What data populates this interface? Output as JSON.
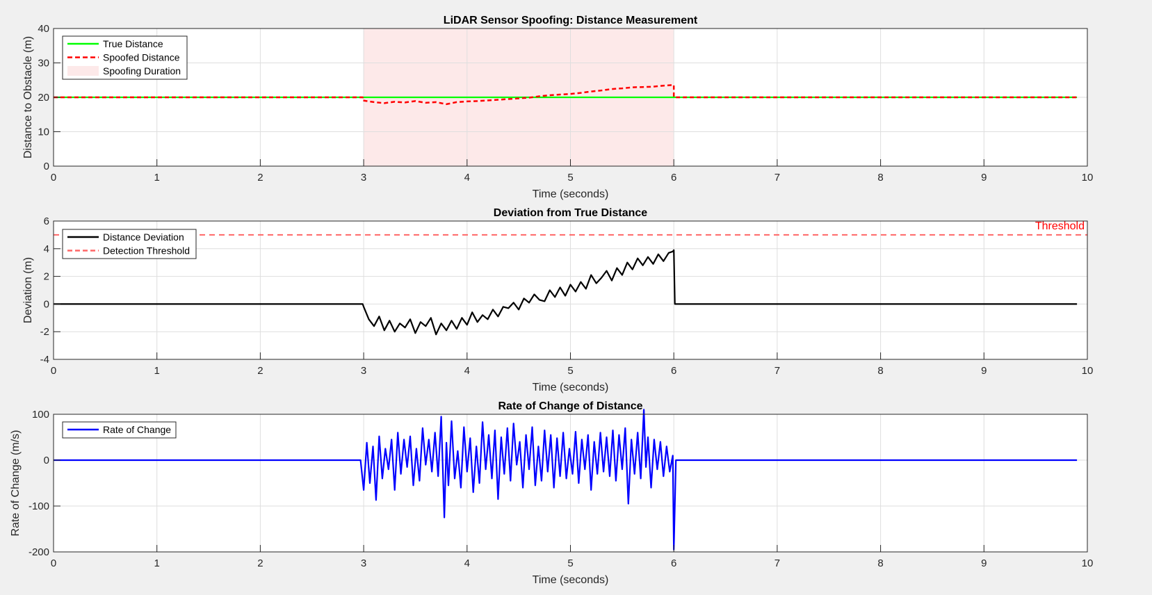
{
  "figure": {
    "background": "#f0f0f0"
  },
  "chart_data": [
    {
      "type": "line",
      "title": "LiDAR Sensor Spoofing: Distance Measurement",
      "xlabel": "Time (seconds)",
      "ylabel": "Distance to Obstacle (m)",
      "xlim": [
        0,
        10
      ],
      "ylim": [
        0,
        40
      ],
      "xticks": [
        0,
        1,
        2,
        3,
        4,
        5,
        6,
        7,
        8,
        9,
        10
      ],
      "yticks": [
        0,
        10,
        20,
        30,
        40
      ],
      "grid": true,
      "legend_position": "top-left",
      "shaded_region": {
        "label": "Spoofing Duration",
        "x_start": 3,
        "x_end": 6,
        "color": "#fde9e9"
      },
      "series": [
        {
          "name": "True Distance",
          "color": "#00ff00",
          "dash": "solid",
          "x": [
            0,
            9.9
          ],
          "y": [
            20,
            20
          ]
        },
        {
          "name": "Spoofed Distance",
          "color": "#ff0000",
          "dash": "dashed",
          "x": [
            0,
            2.99,
            2.99,
            3.1,
            3.2,
            3.3,
            3.4,
            3.5,
            3.6,
            3.7,
            3.8,
            3.9,
            4.0,
            4.1,
            4.2,
            4.3,
            4.4,
            4.5,
            4.6,
            4.7,
            4.8,
            4.9,
            5.0,
            5.1,
            5.2,
            5.3,
            5.4,
            5.5,
            5.6,
            5.7,
            5.8,
            5.9,
            6.0,
            6.0,
            9.9
          ],
          "y": [
            20,
            20,
            19.1,
            18.6,
            18.3,
            18.7,
            18.5,
            18.9,
            18.4,
            18.6,
            18.0,
            18.6,
            18.8,
            18.9,
            19.1,
            19.3,
            19.5,
            19.7,
            19.9,
            20.3,
            20.6,
            20.8,
            21.0,
            21.3,
            21.7,
            22.0,
            22.4,
            22.6,
            22.9,
            23.0,
            23.1,
            23.4,
            23.6,
            20,
            20
          ]
        }
      ]
    },
    {
      "type": "line",
      "title": "Deviation from True Distance",
      "xlabel": "Time (seconds)",
      "ylabel": "Deviation (m)",
      "xlim": [
        0,
        10
      ],
      "ylim": [
        -4,
        6
      ],
      "xticks": [
        0,
        1,
        2,
        3,
        4,
        5,
        6,
        7,
        8,
        9,
        10
      ],
      "yticks": [
        -4,
        -2,
        0,
        2,
        4,
        6
      ],
      "grid": true,
      "legend_position": "top-left",
      "threshold": {
        "name": "Detection Threshold",
        "value": 5,
        "color": "#ff6666",
        "annotation": "Threshold"
      },
      "series": [
        {
          "name": "Distance Deviation",
          "color": "#000000",
          "dash": "solid",
          "x": [
            0,
            2.99,
            3.0,
            3.05,
            3.1,
            3.15,
            3.2,
            3.25,
            3.3,
            3.35,
            3.4,
            3.45,
            3.5,
            3.55,
            3.6,
            3.65,
            3.7,
            3.75,
            3.8,
            3.85,
            3.9,
            3.95,
            4.0,
            4.05,
            4.1,
            4.15,
            4.2,
            4.25,
            4.3,
            4.35,
            4.4,
            4.45,
            4.5,
            4.55,
            4.6,
            4.65,
            4.7,
            4.75,
            4.8,
            4.85,
            4.9,
            4.95,
            5.0,
            5.05,
            5.1,
            5.15,
            5.2,
            5.25,
            5.3,
            5.35,
            5.4,
            5.45,
            5.5,
            5.55,
            5.6,
            5.65,
            5.7,
            5.75,
            5.8,
            5.85,
            5.9,
            5.95,
            5.99,
            6.0,
            6.01,
            9.9
          ],
          "y": [
            0,
            0,
            -0.2,
            -1.1,
            -1.6,
            -0.9,
            -1.9,
            -1.2,
            -2.0,
            -1.4,
            -1.7,
            -1.1,
            -2.1,
            -1.3,
            -1.6,
            -1.0,
            -2.2,
            -1.4,
            -1.9,
            -1.2,
            -1.8,
            -1.0,
            -1.5,
            -0.6,
            -1.3,
            -0.8,
            -1.1,
            -0.4,
            -0.9,
            -0.2,
            -0.3,
            0.1,
            -0.4,
            0.4,
            0.1,
            0.7,
            0.3,
            0.2,
            1.0,
            0.5,
            1.2,
            0.6,
            1.4,
            0.9,
            1.6,
            1.1,
            2.1,
            1.5,
            1.9,
            2.4,
            1.7,
            2.6,
            2.1,
            3.0,
            2.5,
            3.3,
            2.8,
            3.4,
            2.9,
            3.6,
            3.1,
            3.7,
            3.8,
            3.9,
            0,
            0
          ]
        }
      ]
    },
    {
      "type": "line",
      "title": "Rate of Change of Distance",
      "xlabel": "Time (seconds)",
      "ylabel": "Rate of Change (m/s)",
      "xlim": [
        0,
        10
      ],
      "ylim": [
        -200,
        100
      ],
      "xticks": [
        0,
        1,
        2,
        3,
        4,
        5,
        6,
        7,
        8,
        9,
        10
      ],
      "yticks": [
        -200,
        -100,
        0,
        100
      ],
      "grid": true,
      "legend_position": "top-left",
      "series": [
        {
          "name": "Rate of Change",
          "color": "#0000ff",
          "dash": "solid",
          "x": [
            0,
            2.97,
            3.0,
            3.03,
            3.06,
            3.09,
            3.12,
            3.15,
            3.18,
            3.21,
            3.24,
            3.27,
            3.3,
            3.33,
            3.36,
            3.39,
            3.42,
            3.45,
            3.48,
            3.51,
            3.54,
            3.57,
            3.6,
            3.63,
            3.66,
            3.69,
            3.72,
            3.75,
            3.78,
            3.8,
            3.82,
            3.85,
            3.88,
            3.91,
            3.94,
            3.97,
            4.0,
            4.03,
            4.06,
            4.09,
            4.12,
            4.15,
            4.18,
            4.21,
            4.24,
            4.27,
            4.3,
            4.33,
            4.36,
            4.39,
            4.42,
            4.45,
            4.48,
            4.51,
            4.54,
            4.57,
            4.6,
            4.63,
            4.66,
            4.69,
            4.72,
            4.75,
            4.78,
            4.81,
            4.84,
            4.87,
            4.9,
            4.93,
            4.96,
            4.99,
            5.02,
            5.05,
            5.08,
            5.11,
            5.14,
            5.17,
            5.2,
            5.23,
            5.26,
            5.29,
            5.32,
            5.35,
            5.38,
            5.41,
            5.44,
            5.47,
            5.5,
            5.53,
            5.56,
            5.59,
            5.62,
            5.65,
            5.68,
            5.71,
            5.73,
            5.75,
            5.78,
            5.81,
            5.84,
            5.87,
            5.9,
            5.93,
            5.96,
            5.99,
            6.0,
            6.02,
            9.9
          ],
          "y": [
            0,
            0,
            -65,
            38,
            -50,
            30,
            -87,
            52,
            -40,
            25,
            -20,
            45,
            -65,
            60,
            -30,
            45,
            -15,
            52,
            -55,
            25,
            -45,
            70,
            -10,
            45,
            -25,
            60,
            -35,
            95,
            -125,
            38,
            -55,
            85,
            -40,
            20,
            -60,
            72,
            -25,
            48,
            -70,
            30,
            -50,
            83,
            -20,
            55,
            -40,
            65,
            -85,
            50,
            -30,
            70,
            -45,
            80,
            -10,
            40,
            -60,
            55,
            -20,
            72,
            -55,
            30,
            -45,
            65,
            -25,
            55,
            -60,
            48,
            -35,
            60,
            -40,
            25,
            -30,
            62,
            -50,
            45,
            -20,
            55,
            -65,
            40,
            -30,
            60,
            -25,
            50,
            -35,
            65,
            -45,
            55,
            -20,
            70,
            -95,
            45,
            -30,
            60,
            -40,
            110,
            -15,
            50,
            -60,
            45,
            -20,
            40,
            -35,
            30,
            -25,
            10,
            -195,
            0,
            0
          ]
        }
      ]
    }
  ]
}
